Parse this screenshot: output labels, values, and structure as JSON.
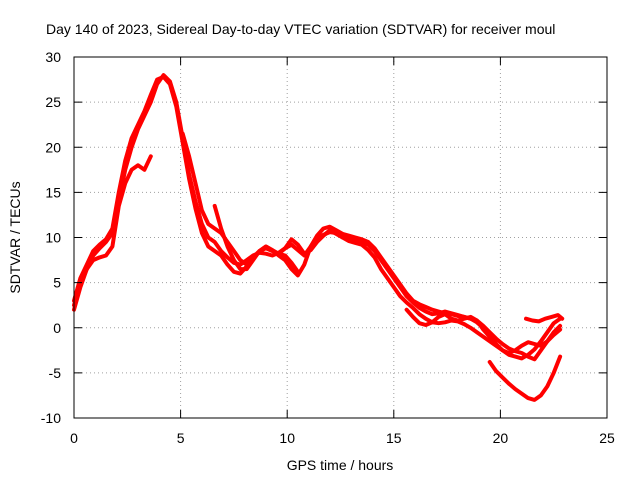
{
  "chart_data": {
    "type": "line",
    "title": "Day 140 of 2023, Sidereal Day-to-day VTEC variation (SDTVAR) for receiver moul",
    "xlabel": "GPS time / hours",
    "ylabel": "SDTVAR / TECUs",
    "xlim": [
      0,
      25
    ],
    "ylim": [
      -10,
      30
    ],
    "xticks": [
      0,
      5,
      10,
      15,
      20,
      25
    ],
    "yticks": [
      -10,
      -5,
      0,
      5,
      10,
      15,
      20,
      25,
      30
    ],
    "xtick_labels": [
      "0",
      "5",
      "10",
      "15",
      "20",
      "25"
    ],
    "ytick_labels": [
      "-10",
      "-5",
      "0",
      "5",
      "10",
      "15",
      "20",
      "25",
      "30"
    ],
    "grid": true,
    "color": "#ff0000",
    "series": [
      {
        "name": "trace-1",
        "x": [
          0.0,
          0.3,
          0.6,
          0.9,
          1.2,
          1.5,
          1.8,
          2.1,
          2.4,
          2.7,
          3.0,
          3.3,
          3.6,
          3.9,
          4.2,
          4.5,
          4.8,
          5.1,
          5.4,
          5.7,
          6.0,
          6.3,
          6.6,
          6.9,
          7.2,
          7.5,
          7.8,
          8.1,
          8.4,
          8.7,
          9.0,
          9.3,
          9.6,
          9.9,
          10.2,
          10.5,
          10.8,
          11.1,
          11.4,
          11.7,
          12.0,
          12.3,
          12.6,
          12.9,
          13.2,
          13.5,
          13.8,
          14.1,
          14.4,
          14.7,
          15.0,
          15.3,
          15.6,
          15.9,
          16.2,
          16.5,
          16.8,
          17.1,
          17.4,
          17.7,
          18.0,
          18.3,
          18.6,
          18.9,
          19.2,
          19.5,
          19.8,
          20.1,
          20.4,
          20.7,
          21.0,
          21.3,
          21.6,
          21.9,
          22.2,
          22.5,
          22.8
        ],
        "y": [
          2.0,
          4.5,
          6.5,
          8.0,
          8.8,
          9.5,
          10.5,
          14.0,
          17.5,
          20.0,
          22.0,
          23.5,
          25.0,
          27.0,
          28.0,
          27.3,
          25.0,
          21.0,
          17.0,
          14.0,
          11.5,
          10.0,
          9.5,
          8.5,
          7.8,
          7.2,
          7.0,
          7.5,
          8.0,
          8.3,
          8.2,
          8.0,
          8.3,
          8.8,
          9.2,
          8.6,
          8.0,
          9.0,
          10.2,
          11.0,
          11.2,
          10.8,
          10.4,
          10.2,
          10.0,
          9.8,
          9.5,
          8.8,
          7.8,
          6.8,
          5.8,
          4.8,
          3.8,
          3.0,
          2.6,
          2.3,
          2.0,
          1.8,
          1.6,
          1.5,
          1.3,
          1.2,
          1.0,
          0.8,
          0.2,
          -0.5,
          -1.2,
          -1.8,
          -2.3,
          -2.6,
          -2.8,
          -3.2,
          -3.5,
          -2.5,
          -1.5,
          -0.5,
          0.2
        ]
      },
      {
        "name": "trace-2",
        "x": [
          0.0,
          0.3,
          0.6,
          0.9,
          1.2,
          1.5,
          1.8,
          2.1,
          2.4,
          2.7,
          3.0,
          3.3,
          3.6,
          3.9,
          4.2,
          4.5,
          4.8,
          5.1,
          5.4,
          5.7,
          6.0,
          6.3,
          6.6,
          6.9,
          7.2,
          7.5,
          7.8,
          8.1,
          8.4,
          8.7,
          9.0,
          9.3,
          9.6,
          9.9,
          10.2,
          10.5,
          10.8,
          11.1,
          11.4,
          11.7,
          12.0,
          12.3,
          12.6,
          12.9,
          13.2,
          13.5,
          13.8,
          14.1,
          14.4,
          14.7,
          15.0,
          15.3,
          15.6,
          15.9,
          16.2,
          16.5,
          16.8,
          17.1,
          17.4,
          17.7,
          18.0,
          18.3,
          18.6,
          18.9,
          19.2,
          19.5,
          19.8,
          20.1,
          20.4,
          20.7,
          21.0,
          21.3,
          21.6,
          21.9,
          22.2,
          22.5,
          22.8
        ],
        "y": [
          3.0,
          5.5,
          7.0,
          8.5,
          9.2,
          9.8,
          11.0,
          15.0,
          18.5,
          21.0,
          22.5,
          24.0,
          25.8,
          27.5,
          27.8,
          27.0,
          24.5,
          20.5,
          16.5,
          13.2,
          10.5,
          9.0,
          8.5,
          8.0,
          7.0,
          6.2,
          6.0,
          6.8,
          7.8,
          8.5,
          9.0,
          8.6,
          8.0,
          7.5,
          6.5,
          5.8,
          7.0,
          9.0,
          10.0,
          10.3,
          10.6,
          10.5,
          10.0,
          9.6,
          9.4,
          9.2,
          8.6,
          7.8,
          6.5,
          5.5,
          4.5,
          3.5,
          2.8,
          2.2,
          1.5,
          1.0,
          0.6,
          0.5,
          0.6,
          0.8,
          0.7,
          0.4,
          0.0,
          -0.5,
          -1.0,
          -1.5,
          -2.0,
          -2.5,
          -3.0,
          -3.2,
          -3.4,
          -3.0,
          -2.4,
          -1.5,
          -0.5,
          0.5,
          1.0
        ]
      },
      {
        "name": "trace-3",
        "x": [
          0.0,
          0.3,
          0.6,
          0.9,
          1.2,
          1.5,
          1.8,
          2.1,
          2.4,
          2.7,
          3.0,
          3.3,
          3.6
        ],
        "y": [
          2.5,
          5.0,
          6.5,
          7.5,
          7.8,
          8.0,
          9.0,
          13.5,
          16.0,
          17.5,
          18.0,
          17.5,
          19.0
        ]
      },
      {
        "name": "trace-4",
        "x": [
          5.1,
          5.4,
          5.7,
          6.0,
          6.3,
          6.6,
          6.9,
          7.2,
          7.5,
          7.8,
          8.1,
          8.4,
          8.7,
          9.0,
          9.3,
          9.6,
          9.9,
          10.2,
          10.5
        ],
        "y": [
          21.5,
          19.0,
          16.0,
          13.0,
          11.5,
          11.0,
          10.5,
          9.5,
          8.5,
          7.5,
          7.0,
          7.8,
          8.5,
          8.8,
          8.5,
          8.2,
          8.0,
          7.2,
          6.2
        ]
      },
      {
        "name": "trace-5",
        "x": [
          6.6,
          6.9,
          7.2,
          7.5,
          7.8,
          8.1,
          8.4,
          8.7,
          9.0,
          9.3,
          9.6,
          9.9,
          10.2,
          10.5,
          10.8,
          11.1,
          11.4,
          11.7,
          12.0,
          12.3,
          12.6,
          12.9,
          13.2,
          13.5,
          13.8,
          14.1,
          14.4,
          14.7,
          15.0,
          15.3,
          15.6,
          15.9,
          16.2,
          16.5,
          16.8,
          17.1,
          17.4,
          17.7,
          18.0,
          18.3,
          18.6,
          18.9,
          19.2,
          19.5,
          19.8
        ],
        "y": [
          13.5,
          11.0,
          9.0,
          7.5,
          6.5,
          6.5,
          7.5,
          8.5,
          9.0,
          8.6,
          8.2,
          8.8,
          9.8,
          9.2,
          8.2,
          8.6,
          9.5,
          10.2,
          10.8,
          10.4,
          10.0,
          9.8,
          9.6,
          9.5,
          9.2,
          8.5,
          7.5,
          6.5,
          5.5,
          4.5,
          3.5,
          2.8,
          2.2,
          1.8,
          1.5,
          1.6,
          1.8,
          1.6,
          1.4,
          1.2,
          1.0,
          0.6,
          0.0,
          -0.8,
          -1.8
        ]
      },
      {
        "name": "trace-6",
        "x": [
          15.6,
          15.9,
          16.2,
          16.5,
          16.8,
          17.1,
          17.4,
          17.7,
          18.0,
          18.3,
          18.6,
          18.9,
          19.2,
          19.5,
          19.8,
          20.1,
          20.4,
          20.7,
          21.0,
          21.3,
          21.6,
          21.9,
          22.2,
          22.5,
          22.8
        ],
        "y": [
          2.0,
          1.2,
          0.5,
          0.3,
          0.6,
          1.2,
          1.5,
          1.0,
          0.8,
          1.0,
          1.2,
          0.8,
          -0.2,
          -1.0,
          -1.8,
          -2.5,
          -2.8,
          -2.5,
          -2.0,
          -1.6,
          -1.8,
          -2.0,
          -1.5,
          -0.8,
          -0.2
        ]
      },
      {
        "name": "trace-7",
        "x": [
          19.5,
          19.8,
          20.1,
          20.4,
          20.7,
          21.0,
          21.3,
          21.6,
          21.9,
          22.2,
          22.5,
          22.8
        ],
        "y": [
          -3.8,
          -4.8,
          -5.5,
          -6.2,
          -6.8,
          -7.3,
          -7.8,
          -8.0,
          -7.5,
          -6.5,
          -5.0,
          -3.2
        ]
      },
      {
        "name": "trace-8",
        "x": [
          21.2,
          21.5,
          21.8,
          22.1,
          22.4,
          22.7,
          22.9
        ],
        "y": [
          1.0,
          0.8,
          0.7,
          1.0,
          1.2,
          1.4,
          1.0
        ]
      }
    ]
  }
}
